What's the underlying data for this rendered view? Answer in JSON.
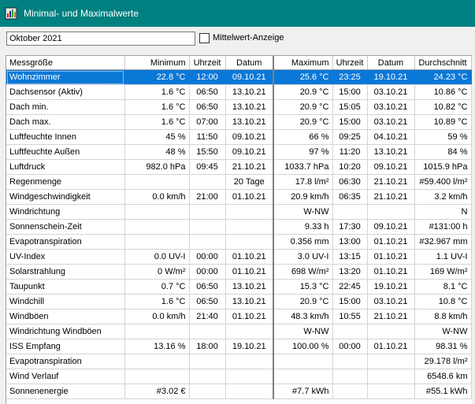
{
  "window": {
    "title": "Minimal- und Maximalwerte"
  },
  "toolbar": {
    "month_value": "Oktober 2021",
    "average_checkbox_label": "Mittelwert-Anzeige",
    "average_checked": false
  },
  "table": {
    "headers": [
      "Messgröße",
      "Minimum",
      "Uhrzeit",
      "Datum",
      "Maximum",
      "Uhrzeit",
      "Datum",
      "Durchschnitt"
    ],
    "rows": [
      [
        "Wohnzimmer",
        "22.8 °C",
        "12:00",
        "09.10.21",
        "25.6 °C",
        "23:25",
        "19.10.21",
        "24.23 °C"
      ],
      [
        "Dachsensor (Aktiv)",
        "1.6 °C",
        "06:50",
        "13.10.21",
        "20.9 °C",
        "15:00",
        "03.10.21",
        "10.86 °C"
      ],
      [
        "Dach min.",
        "1.6 °C",
        "06:50",
        "13.10.21",
        "20.9 °C",
        "15:05",
        "03.10.21",
        "10.82 °C"
      ],
      [
        "Dach max.",
        "1.6 °C",
        "07:00",
        "13.10.21",
        "20.9 °C",
        "15:00",
        "03.10.21",
        "10.89 °C"
      ],
      [
        "Luftfeuchte Innen",
        "45 %",
        "11:50",
        "09.10.21",
        "66 %",
        "09:25",
        "04.10.21",
        "59 %"
      ],
      [
        "Luftfeuchte Außen",
        "48 %",
        "15:50",
        "09.10.21",
        "97 %",
        "11:20",
        "13.10.21",
        "84 %"
      ],
      [
        "Luftdruck",
        "982.0 hPa",
        "09:45",
        "21.10.21",
        "1033.7 hPa",
        "10:20",
        "09.10.21",
        "1015.9 hPa"
      ],
      [
        "Regenmenge",
        "",
        "",
        "20 Tage",
        "17.8 l/m²",
        "06:30",
        "21.10.21",
        "#59.400 l/m²"
      ],
      [
        "Windgeschwindigkeit",
        "0.0 km/h",
        "21:00",
        "01.10.21",
        "20.9 km/h",
        "06:35",
        "21.10.21",
        "3.2 km/h"
      ],
      [
        "Windrichtung",
        "",
        "",
        "",
        "W-NW",
        "",
        "",
        "N"
      ],
      [
        "Sonnenschein-Zeit",
        "",
        "",
        "",
        "9.33 h",
        "17:30",
        "09.10.21",
        "#131:00 h"
      ],
      [
        "Evapotranspiration",
        "",
        "",
        "",
        "0.356 mm",
        "13:00",
        "01.10.21",
        "#32.967 mm"
      ],
      [
        "UV-Index",
        "0.0 UV-I",
        "00:00",
        "01.10.21",
        "3.0 UV-I",
        "13:15",
        "01.10.21",
        "1.1 UV-I"
      ],
      [
        "Solarstrahlung",
        "0 W/m²",
        "00:00",
        "01.10.21",
        "698 W/m²",
        "13:20",
        "01.10.21",
        "169 W/m²"
      ],
      [
        "Taupunkt",
        "0.7 °C",
        "06:50",
        "13.10.21",
        "15.3 °C",
        "22:45",
        "19.10.21",
        "8.1 °C"
      ],
      [
        "Windchill",
        "1.6 °C",
        "06:50",
        "13.10.21",
        "20.9 °C",
        "15:00",
        "03.10.21",
        "10.8 °C"
      ],
      [
        "Windböen",
        "0.0 km/h",
        "21:40",
        "01.10.21",
        "48.3 km/h",
        "10:55",
        "21.10.21",
        "8.8 km/h"
      ],
      [
        "Windrichtung Windböen",
        "",
        "",
        "",
        "W-NW",
        "",
        "",
        "W-NW"
      ],
      [
        "ISS Empfang",
        "13.16 %",
        "18:00",
        "19.10.21",
        "100.00 %",
        "00:00",
        "01.10.21",
        "98.31 %"
      ],
      [
        "Evapotranspiration",
        "",
        "",
        "",
        "",
        "",
        "",
        "29.178 l/m²"
      ],
      [
        "Wind Verlauf",
        "",
        "",
        "",
        "",
        "",
        "",
        "6548.6 km"
      ],
      [
        "Sonnenenergie",
        "#3.02 €",
        "",
        "",
        "#7.7 kWh",
        "",
        "",
        "#55.1 kWh"
      ]
    ],
    "selected_row": 0
  },
  "colors": {
    "titlebar": "#008080",
    "selection": "#0a78d7"
  }
}
